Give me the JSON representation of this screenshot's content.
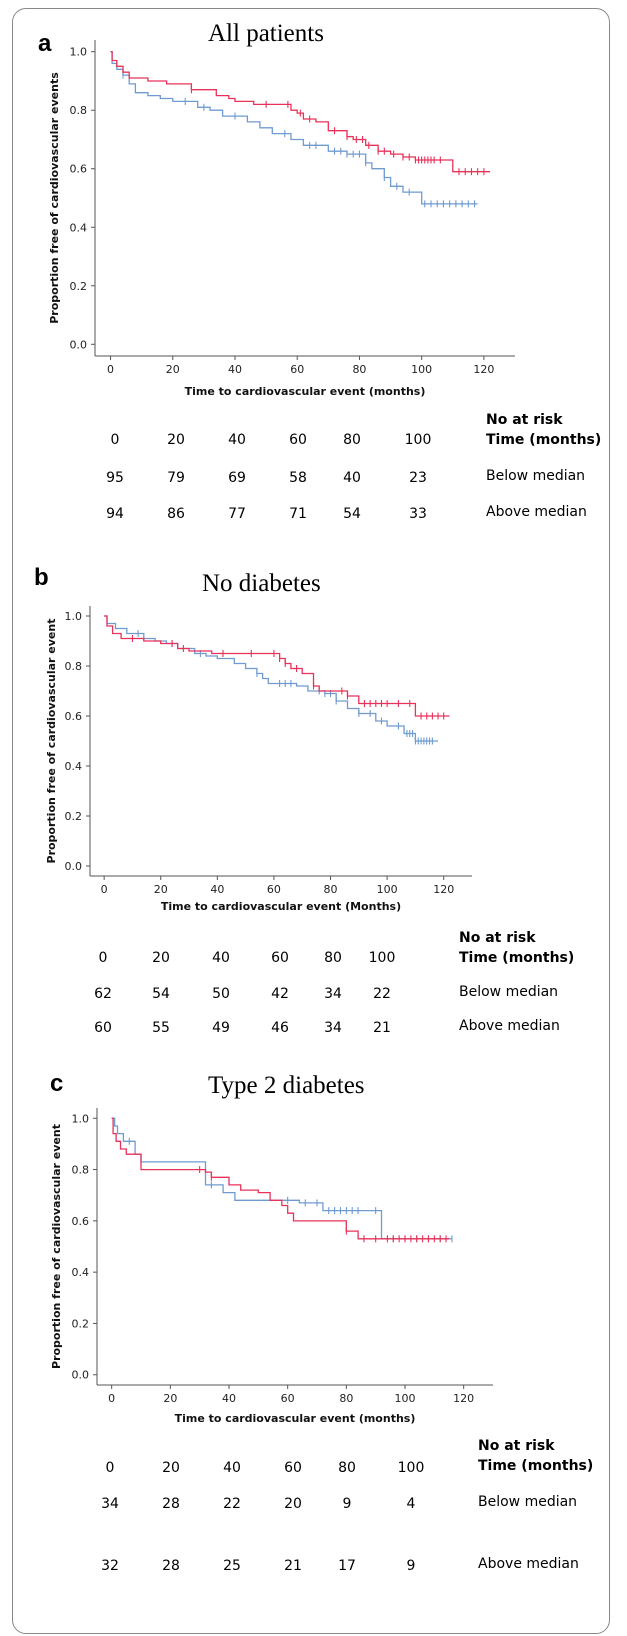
{
  "chart_data": [
    {
      "type": "line",
      "panel_letter": "a",
      "title": "All patients",
      "xlabel": "Time to cardiovascular event (months)",
      "ylabel": "Proportion free of cardiovascular events",
      "xticks": [
        0,
        20,
        40,
        60,
        80,
        100,
        120
      ],
      "yticks": [
        0.0,
        0.2,
        0.4,
        0.6,
        0.8,
        1.0
      ],
      "ytick_labels": [
        "0.0",
        "0.2",
        "0.4",
        "0.6",
        "0.8",
        "1.0"
      ],
      "xlim": [
        -5,
        130
      ],
      "ylim": [
        -0.04,
        1.04
      ],
      "series": [
        {
          "color": "#e8325a",
          "steps": [
            [
              0,
              1.0
            ],
            [
              0.5,
              0.97
            ],
            [
              2,
              0.95
            ],
            [
              4,
              0.93
            ],
            [
              6,
              0.91
            ],
            [
              12,
              0.9
            ],
            [
              18,
              0.89
            ],
            [
              26,
              0.87
            ],
            [
              34,
              0.85
            ],
            [
              38,
              0.84
            ],
            [
              40,
              0.83
            ],
            [
              46,
              0.82
            ],
            [
              58,
              0.8
            ],
            [
              60,
              0.79
            ],
            [
              62,
              0.77
            ],
            [
              66,
              0.76
            ],
            [
              70,
              0.73
            ],
            [
              76,
              0.71
            ],
            [
              78,
              0.7
            ],
            [
              82,
              0.68
            ],
            [
              86,
              0.66
            ],
            [
              90,
              0.65
            ],
            [
              94,
              0.64
            ],
            [
              98,
              0.63
            ],
            [
              110,
              0.59
            ],
            [
              122,
              0.59
            ]
          ],
          "censor": [
            26,
            50,
            57,
            61,
            64,
            72,
            76,
            79,
            81,
            83,
            86,
            88,
            91,
            94,
            96,
            98,
            99,
            100,
            101,
            102,
            103,
            104,
            106,
            112,
            114,
            116,
            118,
            120
          ]
        },
        {
          "color": "#6f9bd1",
          "steps": [
            [
              0,
              1.0
            ],
            [
              0.5,
              0.96
            ],
            [
              2,
              0.94
            ],
            [
              4,
              0.92
            ],
            [
              6,
              0.89
            ],
            [
              8,
              0.86
            ],
            [
              12,
              0.85
            ],
            [
              16,
              0.84
            ],
            [
              20,
              0.83
            ],
            [
              28,
              0.81
            ],
            [
              32,
              0.8
            ],
            [
              36,
              0.78
            ],
            [
              44,
              0.76
            ],
            [
              48,
              0.74
            ],
            [
              52,
              0.72
            ],
            [
              58,
              0.7
            ],
            [
              62,
              0.68
            ],
            [
              70,
              0.66
            ],
            [
              76,
              0.65
            ],
            [
              82,
              0.62
            ],
            [
              84,
              0.6
            ],
            [
              88,
              0.57
            ],
            [
              90,
              0.54
            ],
            [
              94,
              0.52
            ],
            [
              100,
              0.48
            ],
            [
              118,
              0.48
            ]
          ],
          "censor": [
            4,
            24,
            30,
            40,
            56,
            64,
            66,
            72,
            74,
            76,
            78,
            80,
            82,
            88,
            92,
            96,
            101,
            103,
            105,
            107,
            109,
            111,
            113,
            115,
            117
          ]
        }
      ],
      "risk_table": {
        "header_line1": "No at risk",
        "header_line2": "Time  (months)",
        "times": [
          "0",
          "20",
          "40",
          "60",
          "80",
          "100"
        ],
        "rows": [
          {
            "label": "Below median",
            "values": [
              "95",
              "79",
              "69",
              "58",
              "40",
              "23"
            ]
          },
          {
            "label": "Above median",
            "values": [
              "94",
              "86",
              "77",
              "71",
              "54",
              "33"
            ]
          }
        ]
      }
    },
    {
      "type": "line",
      "panel_letter": "b",
      "title": "No diabetes",
      "xlabel": "Time to cardiovascular event (Months)",
      "ylabel": "Proportion free of cardiovascular event",
      "xticks": [
        0,
        20,
        40,
        60,
        80,
        100,
        120
      ],
      "yticks": [
        0.0,
        0.2,
        0.4,
        0.6,
        0.8,
        1.0
      ],
      "ytick_labels": [
        "0.0",
        "0.2",
        "0.4",
        "0.6",
        "0.8",
        "1.0"
      ],
      "xlim": [
        -5,
        130
      ],
      "ylim": [
        -0.04,
        1.04
      ],
      "series": [
        {
          "color": "#e8325a",
          "steps": [
            [
              0,
              1.0
            ],
            [
              1,
              0.96
            ],
            [
              3,
              0.93
            ],
            [
              6,
              0.91
            ],
            [
              14,
              0.9
            ],
            [
              20,
              0.89
            ],
            [
              26,
              0.87
            ],
            [
              30,
              0.86
            ],
            [
              38,
              0.85
            ],
            [
              62,
              0.83
            ],
            [
              64,
              0.81
            ],
            [
              66,
              0.79
            ],
            [
              70,
              0.77
            ],
            [
              74,
              0.72
            ],
            [
              76,
              0.7
            ],
            [
              86,
              0.68
            ],
            [
              90,
              0.65
            ],
            [
              110,
              0.6
            ],
            [
              122,
              0.6
            ]
          ],
          "censor": [
            10,
            24,
            28,
            42,
            52,
            60,
            62,
            64,
            68,
            74,
            84,
            86,
            92,
            94,
            96,
            98,
            100,
            104,
            108,
            112,
            114,
            116,
            118,
            120
          ]
        },
        {
          "color": "#6f9bd1",
          "steps": [
            [
              0,
              1.0
            ],
            [
              1,
              0.97
            ],
            [
              4,
              0.95
            ],
            [
              8,
              0.93
            ],
            [
              14,
              0.91
            ],
            [
              18,
              0.9
            ],
            [
              22,
              0.89
            ],
            [
              26,
              0.87
            ],
            [
              32,
              0.85
            ],
            [
              36,
              0.84
            ],
            [
              40,
              0.83
            ],
            [
              46,
              0.81
            ],
            [
              50,
              0.79
            ],
            [
              54,
              0.77
            ],
            [
              56,
              0.75
            ],
            [
              58,
              0.73
            ],
            [
              68,
              0.72
            ],
            [
              72,
              0.7
            ],
            [
              78,
              0.69
            ],
            [
              82,
              0.66
            ],
            [
              86,
              0.63
            ],
            [
              90,
              0.61
            ],
            [
              96,
              0.58
            ],
            [
              100,
              0.56
            ],
            [
              106,
              0.53
            ],
            [
              110,
              0.5
            ],
            [
              118,
              0.5
            ]
          ],
          "censor": [
            12,
            24,
            34,
            54,
            62,
            64,
            66,
            76,
            78,
            80,
            82,
            90,
            94,
            98,
            104,
            107,
            108,
            109,
            110,
            111,
            112,
            113,
            114,
            115,
            116
          ]
        }
      ],
      "risk_table": {
        "header_line1": "No at risk",
        "header_line2": "Time  (months)",
        "times": [
          "0",
          "20",
          "40",
          "60",
          "80",
          "100"
        ],
        "rows": [
          {
            "label": "Below median",
            "values": [
              "62",
              "54",
              "50",
              "42",
              "34",
              "22"
            ]
          },
          {
            "label": "Above median",
            "values": [
              "60",
              "55",
              "49",
              "46",
              "34",
              "21"
            ]
          }
        ]
      }
    },
    {
      "type": "line",
      "panel_letter": "c",
      "title": "Type 2 diabetes",
      "xlabel": "Time to cardiovascular event (months)",
      "ylabel": "Proportion free of cardiovascular event",
      "xticks": [
        0,
        20,
        40,
        60,
        80,
        100,
        120
      ],
      "yticks": [
        0.0,
        0.2,
        0.4,
        0.6,
        0.8,
        1.0
      ],
      "ytick_labels": [
        "0.0",
        "0.2",
        "0.4",
        "0.6",
        "0.8",
        "1.0"
      ],
      "xlim": [
        -5,
        130
      ],
      "ylim": [
        -0.04,
        1.04
      ],
      "series": [
        {
          "color": "#e8325a",
          "steps": [
            [
              0,
              1.0
            ],
            [
              0.5,
              0.94
            ],
            [
              1.5,
              0.91
            ],
            [
              3,
              0.88
            ],
            [
              5,
              0.86
            ],
            [
              10,
              0.8
            ],
            [
              30,
              0.8
            ],
            [
              32,
              0.79
            ],
            [
              34,
              0.77
            ],
            [
              38,
              0.77
            ],
            [
              40,
              0.74
            ],
            [
              44,
              0.72
            ],
            [
              50,
              0.71
            ],
            [
              54,
              0.68
            ],
            [
              58,
              0.66
            ],
            [
              60,
              0.63
            ],
            [
              62,
              0.6
            ],
            [
              78,
              0.6
            ],
            [
              80,
              0.56
            ],
            [
              84,
              0.53
            ],
            [
              115,
              0.53
            ]
          ],
          "censor": [
            30,
            34,
            80,
            86,
            90,
            94,
            96,
            98,
            100,
            102,
            104,
            106,
            108,
            110,
            112,
            114
          ]
        },
        {
          "color": "#6f9bd1",
          "steps": [
            [
              0,
              1.0
            ],
            [
              1,
              0.97
            ],
            [
              2,
              0.94
            ],
            [
              4,
              0.91
            ],
            [
              8,
              0.86
            ],
            [
              10,
              0.83
            ],
            [
              30,
              0.83
            ],
            [
              32,
              0.74
            ],
            [
              38,
              0.71
            ],
            [
              42,
              0.68
            ],
            [
              60,
              0.68
            ],
            [
              64,
              0.67
            ],
            [
              70,
              0.67
            ],
            [
              72,
              0.64
            ],
            [
              90,
              0.64
            ],
            [
              92,
              0.53
            ],
            [
              116,
              0.53
            ]
          ],
          "censor": [
            6,
            34,
            60,
            66,
            70,
            74,
            76,
            78,
            80,
            82,
            84,
            90,
            96,
            100,
            104,
            108,
            112,
            116
          ]
        }
      ],
      "risk_table": {
        "header_line1": "No at risk",
        "header_line2": "Time  (months)",
        "times": [
          "0",
          "20",
          "40",
          "60",
          "80",
          "100"
        ],
        "rows": [
          {
            "label": "Below median",
            "values": [
              "34",
              "28",
              "22",
              "20",
              "9",
              "4"
            ]
          },
          {
            "label": "Above median",
            "values": [
              "32",
              "28",
              "25",
              "21",
              "17",
              "9"
            ]
          }
        ]
      }
    }
  ]
}
